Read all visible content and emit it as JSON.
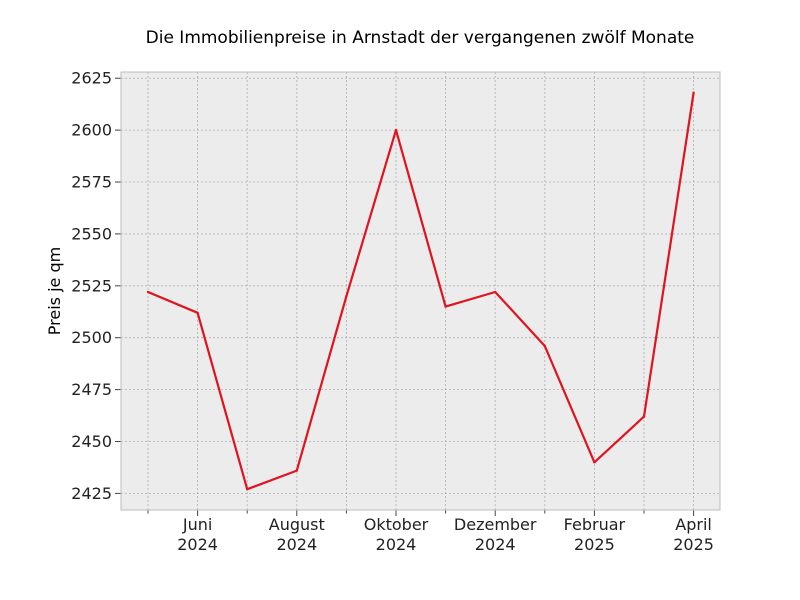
{
  "chart_data": {
    "type": "line",
    "title": "Die Immobilienpreise in Arnstadt der vergangenen zwölf Monate",
    "xlabel": "",
    "ylabel": "Preis je qm",
    "x": [
      "2024-05",
      "2024-06",
      "2024-07",
      "2024-08",
      "2024-09",
      "2024-10",
      "2024-11",
      "2024-12",
      "2025-01",
      "2025-02",
      "2025-03",
      "2025-04"
    ],
    "series": [
      {
        "values": [
          2522,
          2512,
          2427,
          2436,
          2520,
          2600,
          2515,
          2522,
          2496,
          2440,
          2462,
          2618
        ]
      }
    ],
    "ylim": [
      2417,
      2628
    ],
    "yticks": [
      2425,
      2450,
      2475,
      2500,
      2525,
      2550,
      2575,
      2600,
      2625
    ],
    "xtick_labels": [
      {
        "line1": "Juni",
        "line2": "2024"
      },
      {
        "line1": "August",
        "line2": "2024"
      },
      {
        "line1": "Oktober",
        "line2": "2024"
      },
      {
        "line1": "Dezember",
        "line2": "2024"
      },
      {
        "line1": "Februar",
        "line2": "2025"
      },
      {
        "line1": "April",
        "line2": "2025"
      }
    ],
    "grid": true,
    "line_color": "#e0131f",
    "background_color": "#ececec",
    "grid_color": "#b0b0b0"
  }
}
